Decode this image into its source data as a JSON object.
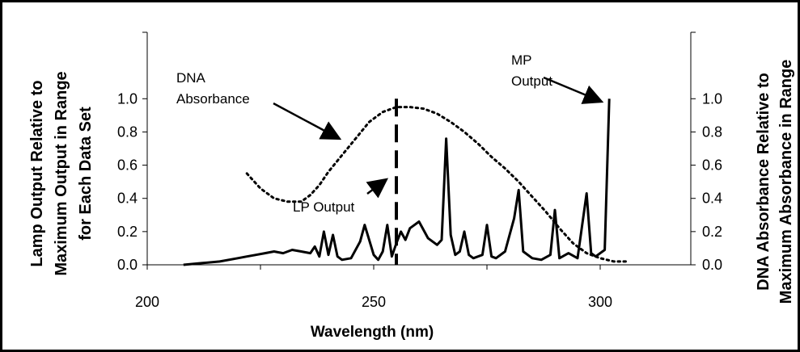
{
  "chart_data": {
    "type": "line",
    "title": "",
    "xlabel": "Wavelength (nm)",
    "ylabel_left": [
      "Lamp Output Relative to",
      "Maximum Output in Range",
      "for Each Data Set"
    ],
    "ylabel_right": [
      "DNA Absorbance Relative to",
      "Maximum Absorbance in Range"
    ],
    "xlim": [
      200,
      320
    ],
    "ylim": [
      0,
      1.4
    ],
    "x_ticks": [
      200,
      250,
      300
    ],
    "x_tick_labels": [
      "200",
      "250",
      "300"
    ],
    "y_ticks": [
      0.0,
      0.2,
      0.4,
      0.6,
      0.8,
      1.0
    ],
    "y_tick_labels": [
      "0.0",
      "0.2",
      "0.4",
      "0.6",
      "0.8",
      "1.0"
    ],
    "grid": false,
    "series": [
      {
        "name": "DNA Absorbance",
        "style": "dotted",
        "color": "#000000",
        "x": [
          222,
          225,
          228,
          231,
          234,
          236,
          238,
          240,
          243,
          246,
          249,
          252,
          255,
          258,
          261,
          264,
          267,
          270,
          273,
          276,
          279,
          282,
          285,
          288,
          291,
          294,
          297,
          300,
          303,
          306
        ],
        "y": [
          0.55,
          0.46,
          0.4,
          0.38,
          0.38,
          0.42,
          0.48,
          0.56,
          0.66,
          0.76,
          0.86,
          0.92,
          0.95,
          0.95,
          0.94,
          0.91,
          0.86,
          0.8,
          0.73,
          0.65,
          0.58,
          0.5,
          0.41,
          0.32,
          0.22,
          0.13,
          0.07,
          0.04,
          0.02,
          0.02
        ]
      },
      {
        "name": "MP Output",
        "style": "solid",
        "color": "#000000",
        "x": [
          208,
          212,
          216,
          220,
          222,
          224,
          226,
          228,
          230,
          232,
          234,
          236,
          237,
          238,
          239,
          240,
          241,
          242,
          243,
          245,
          247,
          248,
          249,
          250,
          251,
          252,
          253,
          254,
          255,
          256,
          257,
          258,
          260,
          262,
          264,
          265,
          266,
          267,
          268,
          269,
          270,
          271,
          272,
          274,
          275,
          276,
          277,
          279,
          281,
          282,
          283,
          285,
          287,
          289,
          290,
          291,
          293,
          295,
          297,
          298,
          299,
          300,
          301,
          302
        ],
        "y": [
          0.0,
          0.01,
          0.02,
          0.04,
          0.05,
          0.06,
          0.07,
          0.08,
          0.07,
          0.09,
          0.08,
          0.07,
          0.11,
          0.05,
          0.2,
          0.06,
          0.18,
          0.05,
          0.03,
          0.04,
          0.14,
          0.24,
          0.15,
          0.06,
          0.03,
          0.08,
          0.24,
          0.05,
          0.13,
          0.2,
          0.15,
          0.22,
          0.26,
          0.16,
          0.12,
          0.15,
          0.76,
          0.18,
          0.06,
          0.08,
          0.2,
          0.06,
          0.04,
          0.06,
          0.24,
          0.05,
          0.04,
          0.08,
          0.28,
          0.45,
          0.08,
          0.04,
          0.03,
          0.06,
          0.33,
          0.04,
          0.07,
          0.04,
          0.43,
          0.07,
          0.05,
          0.07,
          0.09,
          1.0
        ]
      }
    ],
    "annotations": [
      {
        "lines": [
          "DNA",
          "Absorbance"
        ]
      },
      {
        "lines": [
          "MP",
          "Output"
        ]
      },
      {
        "lines": [
          "LP Output"
        ]
      }
    ],
    "lp_output_line": {
      "x": 255,
      "y_top": 1.0,
      "style": "dashed"
    }
  }
}
